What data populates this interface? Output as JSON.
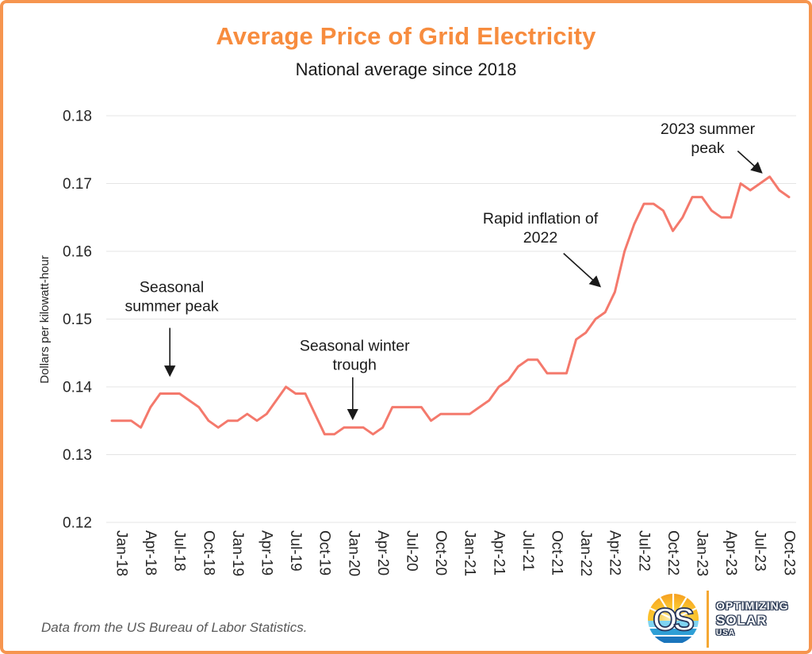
{
  "header": {
    "title": "Average Price of Grid Electricity",
    "title_color": "#f78c3e",
    "subtitle": "National average since 2018"
  },
  "chart_data": {
    "type": "line",
    "title": "Average Price of Grid Electricity",
    "subtitle": "National average since 2018",
    "ylabel": "Dollars per kilowatt-hour",
    "xlabel": "",
    "ylim": [
      0.12,
      0.18
    ],
    "yticks": [
      0.12,
      0.13,
      0.14,
      0.15,
      0.16,
      0.17,
      0.18
    ],
    "grid": true,
    "legend": false,
    "line_color": "#f4796c",
    "x_tick_step": 3,
    "months": [
      "Jan-18",
      "Feb-18",
      "Mar-18",
      "Apr-18",
      "May-18",
      "Jun-18",
      "Jul-18",
      "Aug-18",
      "Sep-18",
      "Oct-18",
      "Nov-18",
      "Dec-18",
      "Jan-19",
      "Feb-19",
      "Mar-19",
      "Apr-19",
      "May-19",
      "Jun-19",
      "Jul-19",
      "Aug-19",
      "Sep-19",
      "Oct-19",
      "Nov-19",
      "Dec-19",
      "Jan-20",
      "Feb-20",
      "Mar-20",
      "Apr-20",
      "May-20",
      "Jun-20",
      "Jul-20",
      "Aug-20",
      "Sep-20",
      "Oct-20",
      "Nov-20",
      "Dec-20",
      "Jan-21",
      "Feb-21",
      "Mar-21",
      "Apr-21",
      "May-21",
      "Jun-21",
      "Jul-21",
      "Aug-21",
      "Sep-21",
      "Oct-21",
      "Nov-21",
      "Dec-21",
      "Jan-22",
      "Feb-22",
      "Mar-22",
      "Apr-22",
      "May-22",
      "Jun-22",
      "Jul-22",
      "Aug-22",
      "Sep-22",
      "Oct-22",
      "Nov-22",
      "Dec-22",
      "Jan-23",
      "Feb-23",
      "Mar-23",
      "Apr-23",
      "May-23",
      "Jun-23",
      "Jul-23",
      "Aug-23",
      "Sep-23",
      "Oct-23",
      "Nov-23"
    ],
    "values": [
      0.135,
      0.135,
      0.135,
      0.134,
      0.137,
      0.139,
      0.139,
      0.139,
      0.138,
      0.137,
      0.135,
      0.134,
      0.135,
      0.135,
      0.136,
      0.135,
      0.136,
      0.138,
      0.14,
      0.139,
      0.139,
      0.136,
      0.133,
      0.133,
      0.134,
      0.134,
      0.134,
      0.133,
      0.134,
      0.137,
      0.137,
      0.137,
      0.137,
      0.135,
      0.136,
      0.136,
      0.136,
      0.136,
      0.137,
      0.138,
      0.14,
      0.141,
      0.143,
      0.144,
      0.144,
      0.142,
      0.142,
      0.142,
      0.147,
      0.148,
      0.15,
      0.151,
      0.154,
      0.16,
      0.164,
      0.167,
      0.167,
      0.166,
      0.163,
      0.165,
      0.168,
      0.168,
      0.166,
      0.165,
      0.165,
      0.17,
      0.169,
      0.17,
      0.171,
      0.169,
      0.168
    ],
    "annotations": [
      {
        "lines": [
          "Seasonal",
          "summer peak"
        ],
        "text_month": 6.2,
        "text_value": 0.154,
        "arrow": {
          "from_month": 6.0,
          "from_value": 0.1487,
          "to_month": 6.0,
          "to_value": 0.1418
        }
      },
      {
        "lines": [
          "Seasonal winter",
          "trough"
        ],
        "text_month": 25.1,
        "text_value": 0.1453,
        "arrow": {
          "from_month": 24.9,
          "from_value": 0.1414,
          "to_month": 24.9,
          "to_value": 0.1354
        }
      },
      {
        "lines": [
          "Rapid inflation of",
          "2022"
        ],
        "text_month": 44.3,
        "text_value": 0.1641,
        "arrow": {
          "from_month": 46.7,
          "from_value": 0.1597,
          "to_month": 50.4,
          "to_value": 0.1549
        }
      },
      {
        "lines": [
          "2023 summer",
          "peak"
        ],
        "text_month": 61.6,
        "text_value": 0.1773,
        "arrow": {
          "from_month": 64.7,
          "from_value": 0.1748,
          "to_month": 67.1,
          "to_value": 0.1717
        }
      }
    ]
  },
  "footer": {
    "source": "Data from the US Bureau of Labor Statistics."
  },
  "logo": {
    "monogram": "OS",
    "lines": [
      "OPTIMIZING",
      "SOLAR",
      "USA"
    ]
  }
}
